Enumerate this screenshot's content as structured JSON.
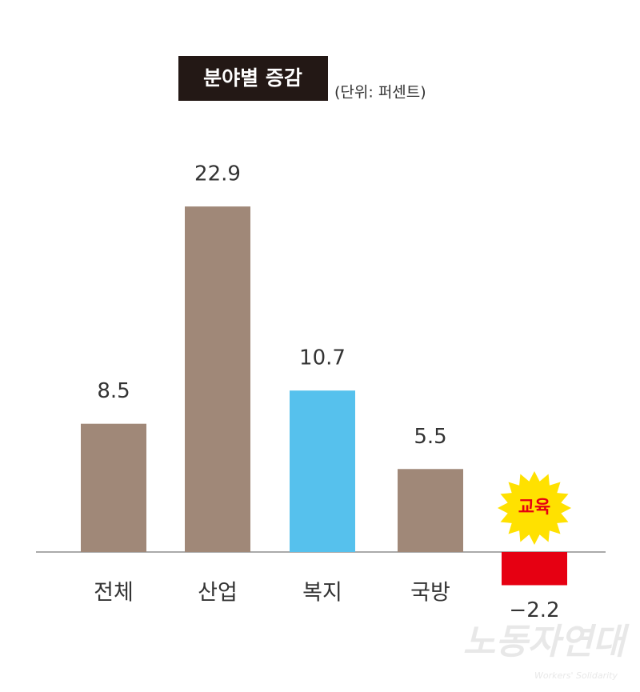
{
  "chart_data": {
    "type": "bar",
    "title": "분야별 증감",
    "subtitle": "(단위: 퍼센트)",
    "categories": [
      "전체",
      "산업",
      "복지",
      "국방",
      "교육"
    ],
    "values": [
      8.5,
      22.9,
      10.7,
      5.5,
      -2.2
    ],
    "value_labels": [
      "8.5",
      "22.9",
      "10.7",
      "5.5",
      "−2.2"
    ],
    "colors": [
      "#a08878",
      "#a08878",
      "#56c1ed",
      "#a08878",
      "#e60012"
    ],
    "highlight_category": 4,
    "watermark": "노동자연대",
    "watermark_sub": "Workers' Solidarity"
  }
}
